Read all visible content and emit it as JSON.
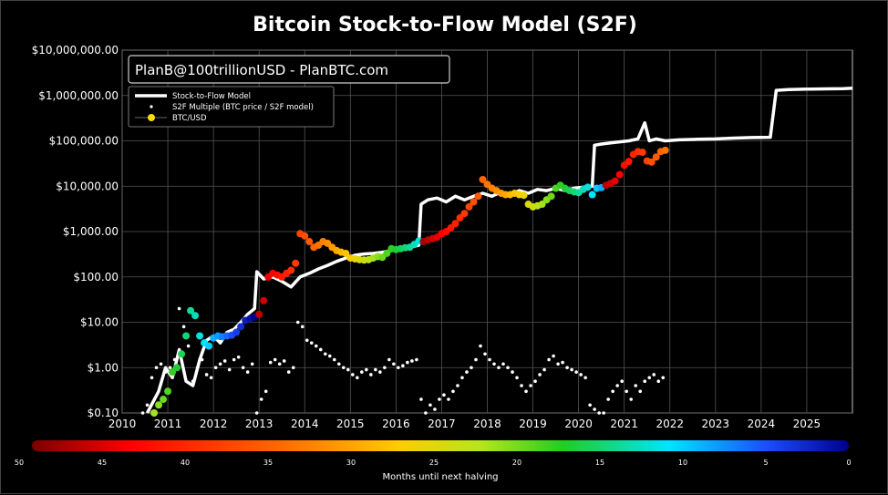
{
  "chart_data": {
    "type": "scatter",
    "title": "Bitcoin Stock-to-Flow Model (S2F)",
    "watermark": "PlanB@100trillionUSD - PlanBTC.com",
    "y_scale": "log",
    "ylim": [
      0.1,
      10000000
    ],
    "xlim": [
      2010,
      2026
    ],
    "grid": true,
    "legend_position": "top-left",
    "y_ticks": [
      "$0.10",
      "$1.00",
      "$10.00",
      "$100.00",
      "$1,000.00",
      "$10,000.00",
      "$100,000.00",
      "$1,000,000.00",
      "$10,000,000.00"
    ],
    "x_ticks": [
      "2010",
      "2011",
      "2012",
      "2013",
      "2014",
      "2015",
      "2016",
      "2017",
      "2018",
      "2019",
      "2020",
      "2021",
      "2022",
      "2023",
      "2024",
      "2025"
    ],
    "legend": [
      "Stock-to-Flow Model",
      "S2F Multiple (BTC price / S2F model)",
      "BTC/USD"
    ],
    "colorbar": {
      "label": "Months until next halving",
      "ticks": [
        "50",
        "45",
        "40",
        "35",
        "30",
        "25",
        "20",
        "15",
        "10",
        "5",
        "0"
      ],
      "range": [
        50,
        0
      ]
    },
    "series": [
      {
        "name": "Stock-to-Flow Model",
        "style": "line",
        "color": "#ffffff",
        "x": [
          2010.55,
          2010.8,
          2010.95,
          2011.1,
          2011.25,
          2011.4,
          2011.55,
          2011.7,
          2011.85,
          2012.0,
          2012.15,
          2012.3,
          2012.45,
          2012.6,
          2012.75,
          2012.9,
          2012.95,
          2013.1,
          2013.3,
          2013.5,
          2013.7,
          2013.9,
          2014.1,
          2014.3,
          2014.5,
          2014.7,
          2014.9,
          2015.1,
          2015.3,
          2015.5,
          2015.7,
          2015.9,
          2016.1,
          2016.3,
          2016.5,
          2016.55,
          2016.7,
          2016.9,
          2017.1,
          2017.3,
          2017.5,
          2017.7,
          2017.9,
          2018.1,
          2018.3,
          2018.5,
          2018.7,
          2018.9,
          2019.1,
          2019.3,
          2019.5,
          2019.7,
          2019.9,
          2020.1,
          2020.3,
          2020.35,
          2020.5,
          2020.7,
          2020.9,
          2021.1,
          2021.3,
          2021.45,
          2021.55,
          2021.7,
          2021.9,
          2022.2,
          2022.6,
          2023.0,
          2023.4,
          2023.8,
          2024.2,
          2024.33,
          2024.6,
          2025.0,
          2025.4,
          2025.8,
          2026.0
        ],
        "y": [
          0.1,
          0.3,
          1.0,
          0.6,
          2.5,
          0.5,
          0.4,
          1.5,
          4.0,
          5.0,
          3.5,
          6.0,
          7.0,
          10.0,
          15.0,
          20.0,
          130.0,
          90.0,
          100.0,
          80.0,
          60.0,
          100.0,
          120.0,
          150.0,
          180.0,
          220.0,
          260.0,
          300.0,
          320.0,
          330.0,
          350.0,
          380.0,
          420.0,
          450.0,
          500.0,
          4000.0,
          5000.0,
          5500.0,
          4500.0,
          6000.0,
          5000.0,
          6000.0,
          7000.0,
          6000.0,
          7500.0,
          6500.0,
          8000.0,
          7000.0,
          8500.0,
          8000.0,
          9000.0,
          8000.0,
          9000.0,
          9500.0,
          10000.0,
          80000.0,
          85000.0,
          90000.0,
          95000.0,
          100000.0,
          110000.0,
          250000.0,
          100000.0,
          110000.0,
          100000.0,
          105000.0,
          108000.0,
          110000.0,
          115000.0,
          118000.0,
          120000.0,
          1300000.0,
          1350000.0,
          1380000.0,
          1400000.0,
          1420000.0,
          1450000.0
        ]
      },
      {
        "name": "S2F Multiple (BTC price / S2F model)",
        "style": "points",
        "color": "#ffffff",
        "x": [
          2010.45,
          2010.55,
          2010.65,
          2010.75,
          2010.85,
          2010.95,
          2011.05,
          2011.15,
          2011.25,
          2011.35,
          2011.45,
          2011.55,
          2011.65,
          2011.75,
          2011.85,
          2011.95,
          2012.05,
          2012.15,
          2012.25,
          2012.35,
          2012.45,
          2012.55,
          2012.65,
          2012.75,
          2012.85,
          2012.95,
          2013.05,
          2013.15,
          2013.25,
          2013.35,
          2013.45,
          2013.55,
          2013.65,
          2013.75,
          2013.85,
          2013.95,
          2014.05,
          2014.15,
          2014.25,
          2014.35,
          2014.45,
          2014.55,
          2014.65,
          2014.75,
          2014.85,
          2014.95,
          2015.05,
          2015.15,
          2015.25,
          2015.35,
          2015.45,
          2015.55,
          2015.65,
          2015.75,
          2015.85,
          2015.95,
          2016.05,
          2016.15,
          2016.25,
          2016.35,
          2016.45,
          2016.55,
          2016.65,
          2016.75,
          2016.85,
          2016.95,
          2017.05,
          2017.15,
          2017.25,
          2017.35,
          2017.45,
          2017.55,
          2017.65,
          2017.75,
          2017.85,
          2017.95,
          2018.05,
          2018.15,
          2018.25,
          2018.35,
          2018.45,
          2018.55,
          2018.65,
          2018.75,
          2018.85,
          2018.95,
          2019.05,
          2019.15,
          2019.25,
          2019.35,
          2019.45,
          2019.55,
          2019.65,
          2019.75,
          2019.85,
          2019.95,
          2020.05,
          2020.15,
          2020.25,
          2020.35,
          2020.45,
          2020.55,
          2020.65,
          2020.75,
          2020.85,
          2020.95,
          2021.05,
          2021.15,
          2021.25,
          2021.35,
          2021.45,
          2021.55,
          2021.65,
          2021.75,
          2021.85
        ],
        "y": [
          0.1,
          0.15,
          0.6,
          1.0,
          1.2,
          0.8,
          1.0,
          1.5,
          20.0,
          8.0,
          3.0,
          0.5,
          1.0,
          1.5,
          0.7,
          0.6,
          1.0,
          1.2,
          1.4,
          0.9,
          1.5,
          1.7,
          1.0,
          0.8,
          1.2,
          0.1,
          0.2,
          0.3,
          1.3,
          1.5,
          1.2,
          1.4,
          0.8,
          1.0,
          10.0,
          8.0,
          4.0,
          3.5,
          3.0,
          2.5,
          2.0,
          1.8,
          1.5,
          1.2,
          1.0,
          0.9,
          0.7,
          0.6,
          0.8,
          0.9,
          0.7,
          0.9,
          0.8,
          1.0,
          1.5,
          1.2,
          1.0,
          1.1,
          1.3,
          1.4,
          1.5,
          0.2,
          0.1,
          0.15,
          0.12,
          0.2,
          0.25,
          0.2,
          0.3,
          0.4,
          0.6,
          0.8,
          1.0,
          1.5,
          3.0,
          2.0,
          1.5,
          1.2,
          1.0,
          1.2,
          1.0,
          0.8,
          0.6,
          0.4,
          0.3,
          0.4,
          0.5,
          0.7,
          0.9,
          1.5,
          1.8,
          1.2,
          1.3,
          1.0,
          0.9,
          0.8,
          0.7,
          0.6,
          0.15,
          0.12,
          0.1,
          0.1,
          0.2,
          0.3,
          0.4,
          0.5,
          0.3,
          0.2,
          0.4,
          0.3,
          0.5,
          0.6,
          0.7,
          0.5,
          0.6
        ]
      },
      {
        "name": "BTC/USD",
        "style": "colored-points",
        "x": [
          2010.6,
          2010.7,
          2010.8,
          2010.9,
          2011.0,
          2011.1,
          2011.2,
          2011.3,
          2011.4,
          2011.5,
          2011.6,
          2011.7,
          2011.8,
          2011.9,
          2012.0,
          2012.1,
          2012.2,
          2012.3,
          2012.4,
          2012.5,
          2012.6,
          2012.7,
          2012.8,
          2012.9,
          2013.0,
          2013.1,
          2013.2,
          2013.3,
          2013.4,
          2013.5,
          2013.6,
          2013.7,
          2013.8,
          2013.9,
          2014.0,
          2014.1,
          2014.2,
          2014.3,
          2014.4,
          2014.5,
          2014.6,
          2014.7,
          2014.8,
          2014.9,
          2015.0,
          2015.1,
          2015.2,
          2015.3,
          2015.4,
          2015.5,
          2015.6,
          2015.7,
          2015.8,
          2015.9,
          2016.0,
          2016.1,
          2016.2,
          2016.3,
          2016.4,
          2016.5,
          2016.6,
          2016.7,
          2016.8,
          2016.9,
          2017.0,
          2017.1,
          2017.2,
          2017.3,
          2017.4,
          2017.5,
          2017.6,
          2017.7,
          2017.8,
          2017.9,
          2018.0,
          2018.1,
          2018.2,
          2018.3,
          2018.4,
          2018.5,
          2018.6,
          2018.7,
          2018.8,
          2018.9,
          2019.0,
          2019.1,
          2019.2,
          2019.3,
          2019.4,
          2019.5,
          2019.6,
          2019.7,
          2019.8,
          2019.9,
          2020.0,
          2020.1,
          2020.2,
          2020.3,
          2020.4,
          2020.5,
          2020.6,
          2020.7,
          2020.8,
          2020.9,
          2021.0,
          2021.1,
          2021.2,
          2021.3,
          2021.4,
          2021.5,
          2021.6,
          2021.7,
          2021.8,
          2021.9
        ],
        "y": [
          0.08,
          0.1,
          0.15,
          0.2,
          0.3,
          0.8,
          1.0,
          2.0,
          5.0,
          18.0,
          14.0,
          5.0,
          3.5,
          3.0,
          4.5,
          5.0,
          4.8,
          5.0,
          5.2,
          6.0,
          8.0,
          11.0,
          12.0,
          13.0,
          15.0,
          30.0,
          100.0,
          120.0,
          110.0,
          100.0,
          120.0,
          140.0,
          200.0,
          900.0,
          800.0,
          600.0,
          450.0,
          500.0,
          600.0,
          550.0,
          450.0,
          380.0,
          350.0,
          330.0,
          260.0,
          250.0,
          240.0,
          235.0,
          240.0,
          260.0,
          280.0,
          270.0,
          330.0,
          420.0,
          400.0,
          420.0,
          440.0,
          450.0,
          520.0,
          620.0,
          600.0,
          650.0,
          700.0,
          750.0,
          900.0,
          1000.0,
          1200.0,
          1500.0,
          2000.0,
          2500.0,
          3500.0,
          4500.0,
          6000.0,
          14000.0,
          11000.0,
          9000.0,
          8000.0,
          7000.0,
          6500.0,
          6500.0,
          7000.0,
          6500.0,
          6300.0,
          4000.0,
          3500.0,
          3700.0,
          4000.0,
          5000.0,
          6000.0,
          9000.0,
          10500.0,
          9000.0,
          8000.0,
          7500.0,
          7200.0,
          8500.0,
          9500.0,
          6500.0,
          9000.0,
          9300.0,
          10500.0,
          11500.0,
          13000.0,
          18000.0,
          29000.0,
          35000.0,
          50000.0,
          58000.0,
          56000.0,
          36000.0,
          34000.0,
          44000.0,
          58000.0,
          62000.0
        ],
        "months_to_halving": [
          24,
          22,
          21,
          20,
          19,
          18,
          17,
          16,
          15,
          14,
          13,
          12,
          11,
          10,
          9,
          8,
          7,
          6,
          5,
          4,
          3,
          2,
          1,
          0,
          47,
          46,
          45,
          44,
          43,
          42,
          41,
          40,
          39,
          38,
          37,
          36,
          35,
          34,
          33,
          32,
          31,
          30,
          29,
          28,
          27,
          26,
          25,
          24,
          23,
          22,
          21,
          20,
          19,
          18,
          17,
          16,
          15,
          14,
          13,
          12,
          48,
          47,
          46,
          45,
          44,
          43,
          42,
          41,
          40,
          39,
          38,
          37,
          36,
          35,
          34,
          33,
          32,
          31,
          30,
          29,
          28,
          27,
          26,
          25,
          24,
          23,
          22,
          21,
          20,
          19,
          18,
          17,
          16,
          15,
          14,
          13,
          12,
          11,
          10,
          9,
          47,
          46,
          45,
          44,
          43,
          42,
          41,
          40,
          39,
          38,
          37,
          36,
          35,
          34
        ]
      }
    ]
  }
}
